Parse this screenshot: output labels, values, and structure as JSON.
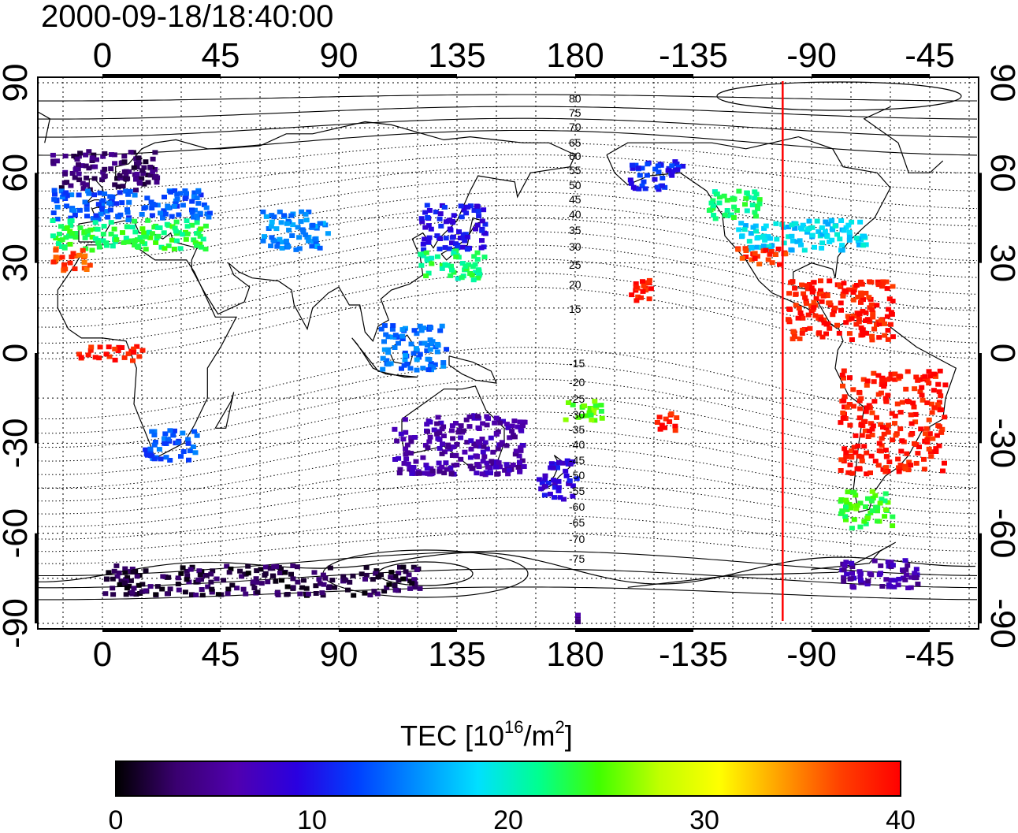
{
  "title": "2000-09-18/18:40:00",
  "map": {
    "lon_top_labels": [
      "0",
      "45",
      "90",
      "135",
      "180",
      "-135",
      "-90",
      "-45"
    ],
    "lon_bottom_labels": [
      "0",
      "45",
      "90",
      "135",
      "180",
      "-135",
      "-90",
      "-45"
    ],
    "lat_left_labels": [
      "90",
      "60",
      "30",
      "0",
      "-30",
      "-60",
      "-90"
    ],
    "lat_right_labels": [
      "90",
      "60",
      "30",
      "0",
      "-30",
      "-60",
      "-90"
    ],
    "mlat_north_labels": [
      "80",
      "75",
      "70",
      "65",
      "60",
      "55",
      "50",
      "45",
      "40",
      "35",
      "30",
      "25",
      "20",
      "15"
    ],
    "mlat_south_labels": [
      "-15",
      "-20",
      "-25",
      "-30",
      "-35",
      "-40",
      "-45",
      "-50",
      "-55",
      "-60",
      "-65",
      "-70",
      "-75"
    ],
    "terminator_longitude": -101,
    "marker_color": "#ff0000"
  },
  "colorbar": {
    "title_prefix": "TEC  [10",
    "title_sup1": "16",
    "title_mid": "/m",
    "title_sup2": "2",
    "title_suffix": "]",
    "tick_labels": [
      "0",
      "10",
      "20",
      "30",
      "40"
    ],
    "min": 0,
    "max": 40,
    "stops": [
      "#000000",
      "#3a0070",
      "#5000b0",
      "#2a00e0",
      "#0040ff",
      "#0090ff",
      "#00e0ff",
      "#00ff90",
      "#40ff00",
      "#c0ff00",
      "#ffff00",
      "#ffa000",
      "#ff4000",
      "#ff0000"
    ]
  },
  "chart_data": {
    "type": "heatmap",
    "title": "2000-09-18/18:40:00",
    "colorbar_label": "TEC [10^16/m^2]",
    "colorbar_range": [
      0,
      40
    ],
    "x_axis": {
      "label": "",
      "ticks": [
        0,
        45,
        90,
        135,
        180,
        -135,
        -90,
        -45
      ]
    },
    "y_axis": {
      "label": "",
      "ticks": [
        90,
        60,
        30,
        0,
        -30,
        -60,
        -90
      ],
      "range": [
        -90,
        90
      ]
    },
    "grid": true,
    "regions": [
      {
        "name": "",
        "lon": [
          -20,
          20
        ],
        "lat": [
          55,
          68
        ],
        "tec": 3
      },
      {
        "name": "",
        "lon": [
          -20,
          40
        ],
        "lat": [
          45,
          55
        ],
        "tec": 13
      },
      {
        "name": "",
        "lon": [
          -20,
          40
        ],
        "lat": [
          35,
          45
        ],
        "tec": 23
      },
      {
        "name": "",
        "lon": [
          -20,
          -5
        ],
        "lat": [
          28,
          36
        ],
        "tec": 37
      },
      {
        "name": "",
        "lon": [
          -10,
          15
        ],
        "lat": [
          -2,
          3
        ],
        "tec": 39
      },
      {
        "name": "",
        "lon": [
          15,
          35
        ],
        "lat": [
          -35,
          -25
        ],
        "tec": 13
      },
      {
        "name": "",
        "lon": [
          60,
          85
        ],
        "lat": [
          35,
          48
        ],
        "tec": 15
      },
      {
        "name": "",
        "lon": [
          120,
          145
        ],
        "lat": [
          35,
          50
        ],
        "tec": 10
      },
      {
        "name": "",
        "lon": [
          120,
          145
        ],
        "lat": [
          25,
          35
        ],
        "tec": 22
      },
      {
        "name": "",
        "lon": [
          105,
          130
        ],
        "lat": [
          -5,
          10
        ],
        "tec": 14
      },
      {
        "name": "",
        "lon": [
          110,
          160
        ],
        "lat": [
          -40,
          -20
        ],
        "tec": 6
      },
      {
        "name": "",
        "lon": [
          165,
          180
        ],
        "lat": [
          -48,
          -35
        ],
        "tec": 9
      },
      {
        "name": "",
        "lon": [
          175,
          190
        ],
        "lat": [
          -22,
          -15
        ],
        "tec": 25
      },
      {
        "name": "",
        "lon": [
          -160,
          -140
        ],
        "lat": [
          55,
          65
        ],
        "tec": 11
      },
      {
        "name": "",
        "lon": [
          -160,
          -148
        ],
        "lat": [
          18,
          25
        ],
        "tec": 39
      },
      {
        "name": "",
        "lon": [
          -150,
          -142
        ],
        "lat": [
          -25,
          -18
        ],
        "tec": 39
      },
      {
        "name": "",
        "lon": [
          -130,
          -110
        ],
        "lat": [
          45,
          55
        ],
        "tec": 22
      },
      {
        "name": "",
        "lon": [
          -120,
          -70
        ],
        "lat": [
          35,
          45
        ],
        "tec": 18
      },
      {
        "name": "",
        "lon": [
          -120,
          -100
        ],
        "lat": [
          30,
          36
        ],
        "tec": 38
      },
      {
        "name": "",
        "lon": [
          -100,
          -60
        ],
        "lat": [
          5,
          25
        ],
        "tec": 39
      },
      {
        "name": "",
        "lon": [
          -80,
          -40
        ],
        "lat": [
          -40,
          -5
        ],
        "tec": 39
      },
      {
        "name": "",
        "lon": [
          -80,
          -60
        ],
        "lat": [
          -58,
          -45
        ],
        "tec": 24
      },
      {
        "name": "",
        "lon": [
          -80,
          -50
        ],
        "lat": [
          -78,
          -68
        ],
        "tec": 6
      },
      {
        "name": "",
        "lon": [
          -180,
          180
        ],
        "lat": [
          -90,
          -86
        ],
        "tec": 4
      },
      {
        "name": "",
        "lon": [
          0,
          120
        ],
        "lat": [
          -80,
          -70
        ],
        "tec": 2
      }
    ]
  }
}
